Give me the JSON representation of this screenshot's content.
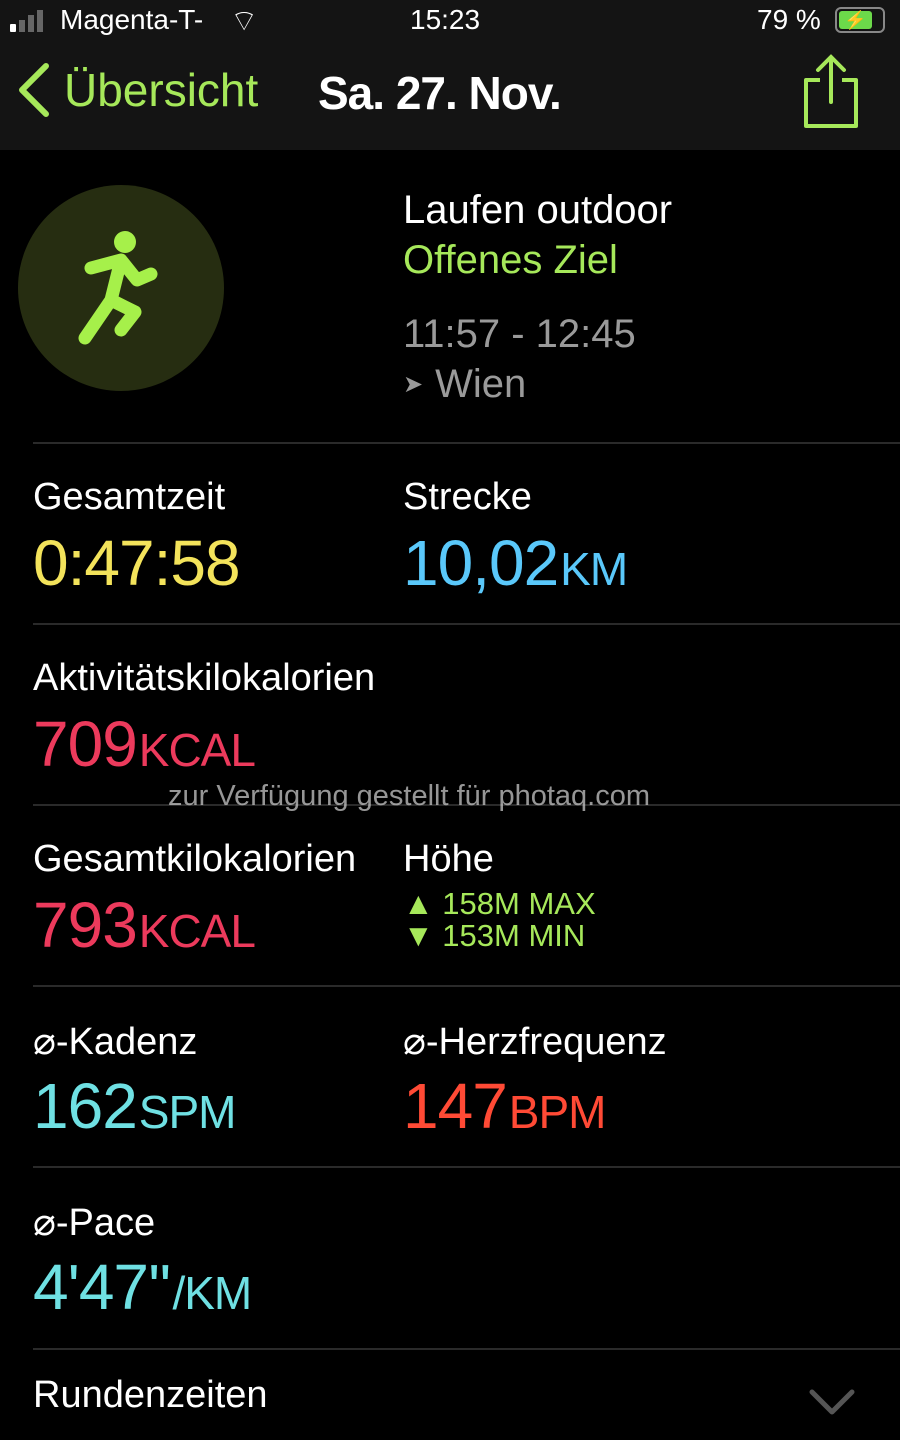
{
  "status_bar": {
    "carrier": "Magenta-T-",
    "time": "15:23",
    "battery": "79 %"
  },
  "nav": {
    "back_label": "Übersicht",
    "title": "Sa. 27. Nov."
  },
  "workout": {
    "type": "Laufen outdoor",
    "goal": "Offenes Ziel",
    "time_range": "11:57 - 12:45",
    "location": "Wien"
  },
  "metrics": {
    "total_time": {
      "label": "Gesamtzeit",
      "value": "0:47:58"
    },
    "distance": {
      "label": "Strecke",
      "value": "10,02",
      "unit": "KM"
    },
    "active_kcal": {
      "label": "Aktivitätskilokalorien",
      "value": "709",
      "unit": "KCAL"
    },
    "total_kcal": {
      "label": "Gesamtkilokalorien",
      "value": "793",
      "unit": "KCAL"
    },
    "elevation": {
      "label": "Höhe",
      "max": "158M MAX",
      "min": "153M MIN"
    },
    "cadence": {
      "label": "⌀-Kadenz",
      "value": "162",
      "unit": "SPM"
    },
    "heart_rate": {
      "label": "⌀-Herzfrequenz",
      "value": "147",
      "unit": "BPM"
    },
    "pace": {
      "label": "⌀-Pace",
      "value": "4'47''",
      "unit": "/KM"
    }
  },
  "splits": {
    "label": "Rundenzeiten"
  },
  "watermark": "zur Verfügung gestellt für photaq.com",
  "colors": {
    "accent": "#a6e85a",
    "time": "#f3e35b",
    "distance": "#5ac8fa",
    "kcal": "#ec3a5c",
    "cadence": "#6fe0e3",
    "heart": "#ff4a35"
  }
}
